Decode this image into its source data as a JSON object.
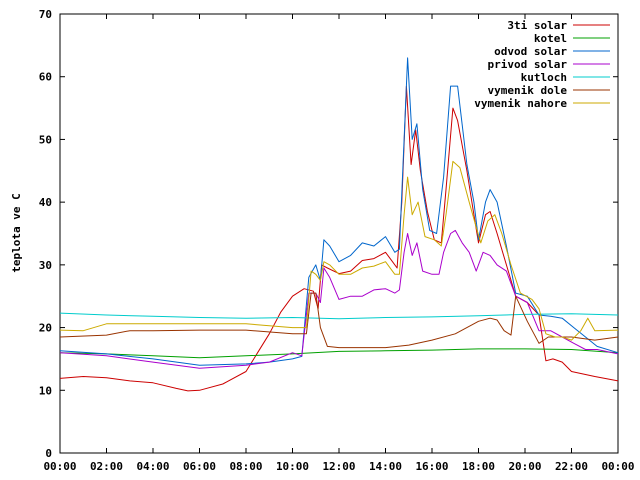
{
  "chart_data": {
    "type": "line",
    "title": "",
    "xlabel": "",
    "ylabel": "teplota ve C",
    "xlim": [
      0,
      24
    ],
    "ylim": [
      0,
      70
    ],
    "xticks": [
      "00:00",
      "02:00",
      "04:00",
      "06:00",
      "08:00",
      "10:00",
      "12:00",
      "14:00",
      "16:00",
      "18:00",
      "20:00",
      "22:00",
      "00:00"
    ],
    "yticks": [
      0,
      10,
      20,
      30,
      40,
      50,
      60,
      70
    ],
    "grid": false,
    "legend_position": "top-right",
    "series": [
      {
        "name": "3ti solar",
        "color": "#cc0000",
        "points": [
          [
            0,
            11.9
          ],
          [
            1,
            12.2
          ],
          [
            2,
            12.0
          ],
          [
            3,
            11.5
          ],
          [
            4,
            11.2
          ],
          [
            5,
            10.3
          ],
          [
            5.5,
            9.9
          ],
          [
            6,
            10.0
          ],
          [
            7,
            11.0
          ],
          [
            8,
            13.0
          ],
          [
            8.5,
            16.0
          ],
          [
            9,
            19.0
          ],
          [
            9.5,
            22.5
          ],
          [
            10,
            25.0
          ],
          [
            10.5,
            26.2
          ],
          [
            10.9,
            25.8
          ],
          [
            11.1,
            23.0
          ],
          [
            11.25,
            30.0
          ],
          [
            11.5,
            29.5
          ],
          [
            12,
            28.6
          ],
          [
            12.5,
            29.0
          ],
          [
            13,
            30.7
          ],
          [
            13.5,
            31.0
          ],
          [
            14,
            32.0
          ],
          [
            14.3,
            30.5
          ],
          [
            14.5,
            29.5
          ],
          [
            14.7,
            40.0
          ],
          [
            14.9,
            58.5
          ],
          [
            15.1,
            46.0
          ],
          [
            15.3,
            51.5
          ],
          [
            15.5,
            45.0
          ],
          [
            15.8,
            38.5
          ],
          [
            16.1,
            34.0
          ],
          [
            16.4,
            33.5
          ],
          [
            16.6,
            42.0
          ],
          [
            16.9,
            55.0
          ],
          [
            17.1,
            53.0
          ],
          [
            17.5,
            45.0
          ],
          [
            17.8,
            38.0
          ],
          [
            18.0,
            33.5
          ],
          [
            18.3,
            38.0
          ],
          [
            18.5,
            38.5
          ],
          [
            18.8,
            35.0
          ],
          [
            19.2,
            30.0
          ],
          [
            19.6,
            25.0
          ],
          [
            20.1,
            24.0
          ],
          [
            20.6,
            22.0
          ],
          [
            20.9,
            14.7
          ],
          [
            21.2,
            15.0
          ],
          [
            21.6,
            14.5
          ],
          [
            22.0,
            13.0
          ],
          [
            23.0,
            12.2
          ],
          [
            24,
            11.5
          ]
        ]
      },
      {
        "name": "kotel",
        "color": "#00a000",
        "points": [
          [
            0,
            16.0
          ],
          [
            2,
            15.8
          ],
          [
            4,
            15.5
          ],
          [
            6,
            15.2
          ],
          [
            8,
            15.5
          ],
          [
            10,
            15.8
          ],
          [
            12,
            16.2
          ],
          [
            14,
            16.3
          ],
          [
            16,
            16.4
          ],
          [
            18,
            16.6
          ],
          [
            20,
            16.6
          ],
          [
            22,
            16.5
          ],
          [
            24,
            16.0
          ]
        ]
      },
      {
        "name": "odvod solar",
        "color": "#0066cc",
        "points": [
          [
            0,
            16.3
          ],
          [
            2,
            15.8
          ],
          [
            4,
            15.0
          ],
          [
            6,
            14.0
          ],
          [
            8,
            14.2
          ],
          [
            9,
            14.5
          ],
          [
            10,
            15.0
          ],
          [
            10.4,
            15.4
          ],
          [
            10.7,
            28.0
          ],
          [
            11.0,
            30.0
          ],
          [
            11.2,
            27.5
          ],
          [
            11.35,
            34.0
          ],
          [
            11.6,
            33.0
          ],
          [
            12,
            30.5
          ],
          [
            12.5,
            31.5
          ],
          [
            13,
            33.5
          ],
          [
            13.5,
            33.0
          ],
          [
            14,
            34.5
          ],
          [
            14.4,
            32.0
          ],
          [
            14.6,
            32.5
          ],
          [
            14.8,
            50.0
          ],
          [
            14.95,
            63.0
          ],
          [
            15.15,
            50.0
          ],
          [
            15.35,
            52.5
          ],
          [
            15.6,
            42.0
          ],
          [
            15.9,
            35.5
          ],
          [
            16.2,
            35.0
          ],
          [
            16.5,
            44.0
          ],
          [
            16.8,
            58.5
          ],
          [
            17.1,
            58.5
          ],
          [
            17.5,
            46.0
          ],
          [
            17.8,
            40.0
          ],
          [
            18.0,
            34.0
          ],
          [
            18.3,
            40.0
          ],
          [
            18.5,
            42.0
          ],
          [
            18.8,
            40.0
          ],
          [
            19.2,
            33.0
          ],
          [
            19.6,
            25.5
          ],
          [
            20.1,
            25.0
          ],
          [
            20.6,
            22.0
          ],
          [
            21.1,
            21.8
          ],
          [
            21.6,
            21.5
          ],
          [
            22.1,
            20.0
          ],
          [
            22.6,
            18.5
          ],
          [
            23.1,
            17.0
          ],
          [
            24,
            16.0
          ]
        ]
      },
      {
        "name": "privod solar",
        "color": "#aa00cc",
        "points": [
          [
            0,
            16.0
          ],
          [
            2,
            15.5
          ],
          [
            4,
            14.5
          ],
          [
            6,
            13.5
          ],
          [
            8,
            14.0
          ],
          [
            9,
            14.5
          ],
          [
            10,
            16.0
          ],
          [
            10.4,
            15.5
          ],
          [
            10.7,
            25.5
          ],
          [
            11.0,
            25.5
          ],
          [
            11.2,
            24.0
          ],
          [
            11.35,
            29.5
          ],
          [
            11.6,
            28.0
          ],
          [
            12,
            24.5
          ],
          [
            12.5,
            25.0
          ],
          [
            13,
            25.0
          ],
          [
            13.5,
            26.0
          ],
          [
            14,
            26.2
          ],
          [
            14.4,
            25.5
          ],
          [
            14.6,
            26.0
          ],
          [
            14.8,
            32.0
          ],
          [
            14.95,
            35.0
          ],
          [
            15.15,
            31.5
          ],
          [
            15.35,
            33.5
          ],
          [
            15.6,
            29.0
          ],
          [
            16.0,
            28.5
          ],
          [
            16.3,
            28.5
          ],
          [
            16.5,
            32.0
          ],
          [
            16.8,
            35.0
          ],
          [
            17.0,
            35.5
          ],
          [
            17.3,
            33.5
          ],
          [
            17.6,
            32.0
          ],
          [
            17.9,
            29.0
          ],
          [
            18.2,
            32.0
          ],
          [
            18.5,
            31.5
          ],
          [
            18.8,
            30.0
          ],
          [
            19.2,
            29.0
          ],
          [
            19.6,
            25.0
          ],
          [
            20.1,
            24.0
          ],
          [
            20.6,
            19.5
          ],
          [
            21.1,
            19.5
          ],
          [
            21.6,
            18.5
          ],
          [
            22.1,
            17.5
          ],
          [
            22.6,
            16.5
          ],
          [
            23.1,
            16.5
          ],
          [
            24,
            15.8
          ]
        ]
      },
      {
        "name": "kutloch",
        "color": "#00cccc",
        "points": [
          [
            0,
            22.3
          ],
          [
            2,
            22.0
          ],
          [
            4,
            21.8
          ],
          [
            6,
            21.6
          ],
          [
            8,
            21.5
          ],
          [
            10,
            21.6
          ],
          [
            12,
            21.4
          ],
          [
            14,
            21.6
          ],
          [
            16,
            21.7
          ],
          [
            18,
            21.9
          ],
          [
            20,
            22.1
          ],
          [
            22,
            22.2
          ],
          [
            24,
            22.0
          ]
        ]
      },
      {
        "name": "vymenik dole",
        "color": "#993300",
        "points": [
          [
            0,
            18.5
          ],
          [
            2,
            18.8
          ],
          [
            3,
            19.5
          ],
          [
            4,
            19.5
          ],
          [
            6,
            19.6
          ],
          [
            8,
            19.6
          ],
          [
            10,
            19.0
          ],
          [
            10.6,
            19.0
          ],
          [
            10.8,
            25.5
          ],
          [
            11.0,
            25.5
          ],
          [
            11.2,
            20.0
          ],
          [
            11.5,
            17.0
          ],
          [
            12,
            16.8
          ],
          [
            13,
            16.8
          ],
          [
            14,
            16.8
          ],
          [
            15,
            17.2
          ],
          [
            16,
            18.0
          ],
          [
            17,
            19.0
          ],
          [
            18,
            21.0
          ],
          [
            18.5,
            21.5
          ],
          [
            18.8,
            21.2
          ],
          [
            19.1,
            19.5
          ],
          [
            19.4,
            18.8
          ],
          [
            19.6,
            25.0
          ],
          [
            20.1,
            21.0
          ],
          [
            20.6,
            17.5
          ],
          [
            21.0,
            18.5
          ],
          [
            22.0,
            18.5
          ],
          [
            23.0,
            18.0
          ],
          [
            24,
            18.5
          ]
        ]
      },
      {
        "name": "vymenik nahore",
        "color": "#ccaa00",
        "points": [
          [
            0,
            19.6
          ],
          [
            1,
            19.5
          ],
          [
            2,
            20.6
          ],
          [
            4,
            20.6
          ],
          [
            6,
            20.6
          ],
          [
            8,
            20.6
          ],
          [
            10,
            20.0
          ],
          [
            10.6,
            20.0
          ],
          [
            10.8,
            29.0
          ],
          [
            11.0,
            28.5
          ],
          [
            11.2,
            27.5
          ],
          [
            11.35,
            30.5
          ],
          [
            11.6,
            30.0
          ],
          [
            12,
            28.5
          ],
          [
            12.5,
            28.5
          ],
          [
            13,
            29.5
          ],
          [
            13.5,
            29.8
          ],
          [
            14,
            30.5
          ],
          [
            14.4,
            28.5
          ],
          [
            14.6,
            28.5
          ],
          [
            14.8,
            38.0
          ],
          [
            14.95,
            44.0
          ],
          [
            15.15,
            38.0
          ],
          [
            15.4,
            40.0
          ],
          [
            15.7,
            34.5
          ],
          [
            16.1,
            34.0
          ],
          [
            16.4,
            33.0
          ],
          [
            16.6,
            38.0
          ],
          [
            16.9,
            46.5
          ],
          [
            17.2,
            45.5
          ],
          [
            17.6,
            40.0
          ],
          [
            17.9,
            36.0
          ],
          [
            18.1,
            33.5
          ],
          [
            18.4,
            37.0
          ],
          [
            18.7,
            38.0
          ],
          [
            19.0,
            35.0
          ],
          [
            19.4,
            30.0
          ],
          [
            19.8,
            25.5
          ],
          [
            20.3,
            24.5
          ],
          [
            20.6,
            23.0
          ],
          [
            20.9,
            19.0
          ],
          [
            21.3,
            18.5
          ],
          [
            21.6,
            18.5
          ],
          [
            22.0,
            18.0
          ],
          [
            22.4,
            19.5
          ],
          [
            22.7,
            21.5
          ],
          [
            23.0,
            19.5
          ],
          [
            24,
            19.6
          ]
        ]
      }
    ]
  }
}
